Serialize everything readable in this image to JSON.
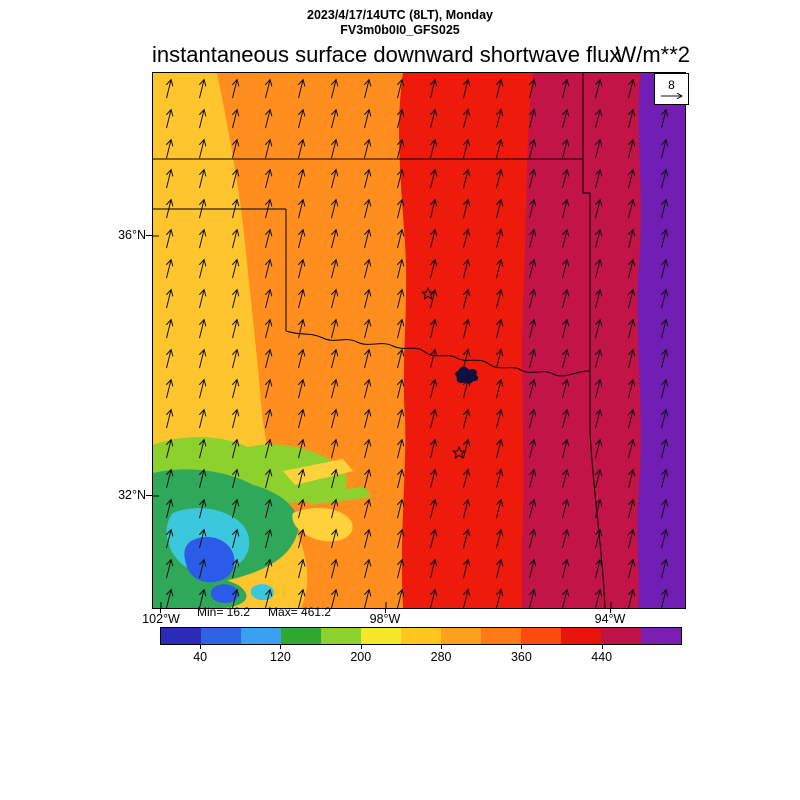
{
  "header": {
    "valid_time": "2023/4/17/14UTC (8LT), Monday",
    "model_run": "FV3m0b0I0_GFS025"
  },
  "title": {
    "text": "instantaneous surface downward shortwave flux",
    "units": "W/m**2"
  },
  "stats": {
    "min_text": "Min= 16.2",
    "max_text": "Max= 461.2"
  },
  "wind_reference": {
    "label": "8"
  },
  "axes": {
    "lat_ticks": [
      "36°N",
      "32°N"
    ],
    "lon_ticks": [
      "102°W",
      "98°W",
      "94°W"
    ]
  },
  "chart_data": {
    "type": "heatmap",
    "title": "instantaneous surface downward shortwave flux",
    "units": "W/m**2",
    "valid_time": "2023/4/17/14UTC (8LT), Monday",
    "model_run": "FV3m0b0I0_GFS025",
    "min": 16.2,
    "max": 461.2,
    "wind_reference_vector": 8,
    "lat_ticks": [
      "36°N",
      "32°N"
    ],
    "lon_ticks": [
      "102°W",
      "98°W",
      "94°W"
    ],
    "colorbar": {
      "tick_labels": [
        "40",
        "120",
        "200",
        "280",
        "360",
        "440"
      ],
      "colors": [
        "#2B2BB8",
        "#2E64E1",
        "#3AA0F0",
        "#2FA82F",
        "#8CD12E",
        "#F5E82A",
        "#FFC71E",
        "#FFA01E",
        "#FF7A14",
        "#FF4A0F",
        "#E8140A",
        "#C01448",
        "#7A1EB4"
      ]
    },
    "map_colors": {
      "yellow_band": "#FFC52E",
      "orange_band": "#FF8E1E",
      "red_band": "#EE1A0C",
      "crimson_band": "#C21446",
      "purple_band": "#701EB4",
      "cloud_light_green": "#8CD12E",
      "cloud_green": "#2FA85A",
      "cloud_cyan": "#3CC8DC",
      "cloud_blue": "#2B5BE8",
      "cloud_yellow": "#FFD23C",
      "lake": "#101040"
    },
    "bands_west_to_east": [
      {
        "region": "far west strip",
        "value_range": "200-280"
      },
      {
        "region": "west-central band",
        "value_range": "280-360"
      },
      {
        "region": "central band",
        "value_range": "360-400"
      },
      {
        "region": "east band",
        "value_range": "400-460"
      },
      {
        "region": "far east strip",
        "value_range": ">440"
      },
      {
        "region": "southwest cloudy patch",
        "value_range": "40-200"
      }
    ],
    "overlays": [
      "wind-vectors",
      "state-boundaries",
      "red-river",
      "city-stars",
      "lake-texoma"
    ]
  }
}
